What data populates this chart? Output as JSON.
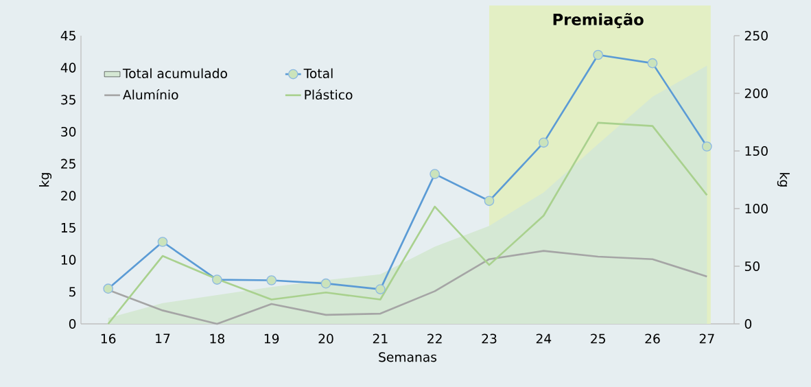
{
  "chart_data": {
    "type": "line",
    "xlabel": "Semanas",
    "ylabel": "kg",
    "y2label": "kg",
    "categories": [
      "16",
      "17",
      "18",
      "19",
      "20",
      "21",
      "22",
      "23",
      "24",
      "25",
      "26",
      "27"
    ],
    "series": [
      {
        "name": "Total acumulado",
        "type": "area",
        "axis": "y2",
        "color": "#d5e8d4",
        "values": [
          5,
          18,
          25,
          32,
          38,
          43,
          67,
          85,
          114,
          156,
          197,
          224
        ]
      },
      {
        "name": "Total",
        "color": "#5b9bd5",
        "marker": "circle",
        "values": [
          5.5,
          12.8,
          6.9,
          6.8,
          6.3,
          5.4,
          23.4,
          19.2,
          28.3,
          42,
          40.7,
          27.7
        ]
      },
      {
        "name": "Alumínio",
        "color": "#a5a5a5",
        "values": [
          5.3,
          2.1,
          0,
          3.1,
          1.4,
          1.6,
          5.1,
          10.1,
          11.4,
          10.5,
          10.1,
          7.4
        ]
      },
      {
        "name": "Plástico",
        "color": "#a9d18e",
        "values": [
          0,
          10.6,
          7,
          3.8,
          4.9,
          3.8,
          18.3,
          9.2,
          16.9,
          31.4,
          30.9,
          20.1
        ]
      }
    ],
    "ylim": [
      0,
      45
    ],
    "yticks": [
      0,
      5,
      10,
      15,
      20,
      25,
      30,
      35,
      40,
      45
    ],
    "y2lim": [
      0,
      250
    ],
    "y2ticks": [
      0,
      50,
      100,
      150,
      200,
      250
    ],
    "bands": [
      {
        "axis": "x",
        "from": "23",
        "to": "27",
        "label": "Premiação",
        "color": "#e3efc4"
      }
    ],
    "legend": "top left",
    "grid": false
  }
}
